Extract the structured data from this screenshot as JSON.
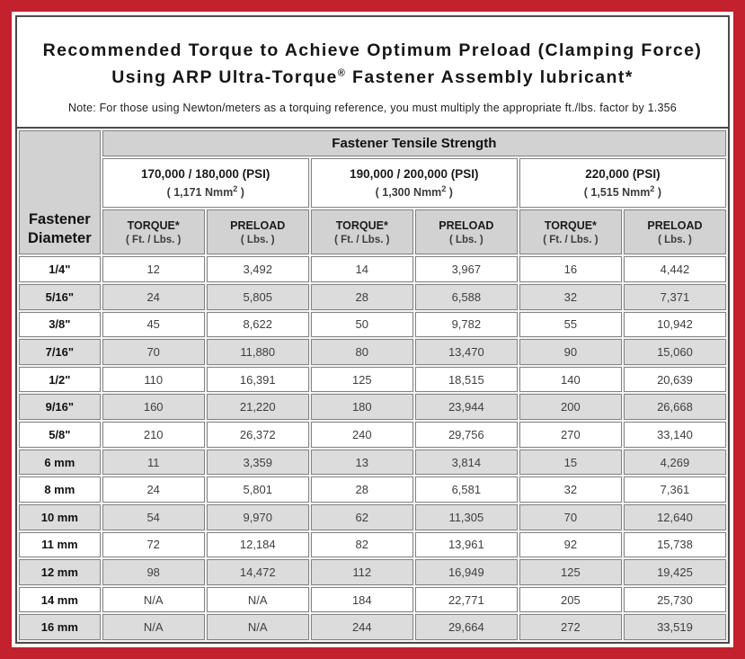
{
  "colors": {
    "frame_red": "#c2212d",
    "border_dark": "#4b4b4b",
    "header_gray": "#d2d2d2",
    "stripe_gray": "#dcdcdc",
    "cell_border": "#828282"
  },
  "header": {
    "title_line1": "Recommended Torque to Achieve Optimum Preload (Clamping Force)",
    "title_line2_pre": "Using ARP Ultra-Torque",
    "title_line2_sup": "®",
    "title_line2_post": " Fastener Assembly lubricant*",
    "note": "Note: For those using Newton/meters as a torquing reference, you must multiply the appropriate ft./lbs. factor by 1.356"
  },
  "table": {
    "corner_label": "Fastener Diameter",
    "tensile_header": "Fastener Tensile Strength",
    "strength_groups": [
      {
        "psi": "170,000 / 180,000 (PSI)",
        "nmm_prefix": "( 1,171 Nmm",
        "nmm_sup": "2",
        "nmm_suffix": " )"
      },
      {
        "psi": "190,000 / 200,000 (PSI)",
        "nmm_prefix": "( 1,300 Nmm",
        "nmm_sup": "2",
        "nmm_suffix": " )"
      },
      {
        "psi": "220,000 (PSI)",
        "nmm_prefix": "( 1,515 Nmm",
        "nmm_sup": "2",
        "nmm_suffix": " )"
      }
    ],
    "subheaders": [
      {
        "label": "TORQUE*",
        "unit": "( Ft. / Lbs. )"
      },
      {
        "label": "PRELOAD",
        "unit": "( Lbs. )"
      },
      {
        "label": "TORQUE*",
        "unit": "( Ft. / Lbs. )"
      },
      {
        "label": "PRELOAD",
        "unit": "( Lbs. )"
      },
      {
        "label": "TORQUE*",
        "unit": "( Ft. / Lbs. )"
      },
      {
        "label": "PRELOAD",
        "unit": "( Lbs. )"
      }
    ],
    "rows": [
      {
        "diameter": "1/4\"",
        "values": [
          "12",
          "3,492",
          "14",
          "3,967",
          "16",
          "4,442"
        ]
      },
      {
        "diameter": "5/16\"",
        "values": [
          "24",
          "5,805",
          "28",
          "6,588",
          "32",
          "7,371"
        ]
      },
      {
        "diameter": "3/8\"",
        "values": [
          "45",
          "8,622",
          "50",
          "9,782",
          "55",
          "10,942"
        ]
      },
      {
        "diameter": "7/16\"",
        "values": [
          "70",
          "11,880",
          "80",
          "13,470",
          "90",
          "15,060"
        ]
      },
      {
        "diameter": "1/2\"",
        "values": [
          "110",
          "16,391",
          "125",
          "18,515",
          "140",
          "20,639"
        ]
      },
      {
        "diameter": "9/16\"",
        "values": [
          "160",
          "21,220",
          "180",
          "23,944",
          "200",
          "26,668"
        ]
      },
      {
        "diameter": "5/8\"",
        "values": [
          "210",
          "26,372",
          "240",
          "29,756",
          "270",
          "33,140"
        ]
      },
      {
        "diameter": "6 mm",
        "values": [
          "11",
          "3,359",
          "13",
          "3,814",
          "15",
          "4,269"
        ]
      },
      {
        "diameter": "8 mm",
        "values": [
          "24",
          "5,801",
          "28",
          "6,581",
          "32",
          "7,361"
        ]
      },
      {
        "diameter": "10 mm",
        "values": [
          "54",
          "9,970",
          "62",
          "11,305",
          "70",
          "12,640"
        ]
      },
      {
        "diameter": "11 mm",
        "values": [
          "72",
          "12,184",
          "82",
          "13,961",
          "92",
          "15,738"
        ]
      },
      {
        "diameter": "12 mm",
        "values": [
          "98",
          "14,472",
          "112",
          "16,949",
          "125",
          "19,425"
        ]
      },
      {
        "diameter": "14 mm",
        "values": [
          "N/A",
          "N/A",
          "184",
          "22,771",
          "205",
          "25,730"
        ]
      },
      {
        "diameter": "16 mm",
        "values": [
          "N/A",
          "N/A",
          "244",
          "29,664",
          "272",
          "33,519"
        ]
      }
    ]
  }
}
